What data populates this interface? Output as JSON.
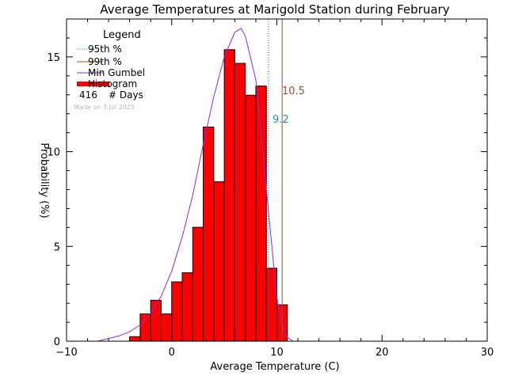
{
  "chart_data": {
    "type": "bar",
    "title": "Average Temperatures at Marigold Station during February",
    "xlabel": "Average Temperature (C)",
    "ylabel": "Probability (%)",
    "xlim": [
      -10,
      30
    ],
    "ylim": [
      0,
      17
    ],
    "xticks": [
      -10,
      0,
      10,
      20,
      30
    ],
    "yticks": [
      0,
      5,
      10,
      15
    ],
    "bin_width": 1,
    "histogram": {
      "bin_left_edges": [
        -4,
        -3,
        -2,
        -1,
        0,
        1,
        2,
        3,
        4,
        5,
        6,
        7,
        8,
        9,
        10
      ],
      "values": [
        0.24,
        1.44,
        2.16,
        1.44,
        3.13,
        3.61,
        6.01,
        11.3,
        8.41,
        15.38,
        14.66,
        12.98,
        13.46,
        3.85,
        1.92
      ],
      "color": "#ff0000"
    },
    "gumbel_curve": {
      "points": [
        [
          -7,
          0.01
        ],
        [
          -5,
          0.28
        ],
        [
          -4,
          0.5
        ],
        [
          -3,
          0.86
        ],
        [
          -2,
          1.45
        ],
        [
          -1,
          2.38
        ],
        [
          0,
          3.7
        ],
        [
          1,
          5.5
        ],
        [
          2,
          7.7
        ],
        [
          3,
          10.4
        ],
        [
          4,
          12.9
        ],
        [
          5,
          15.0
        ],
        [
          6,
          16.3
        ],
        [
          6.6,
          16.5
        ],
        [
          7,
          16.1
        ],
        [
          8,
          13.8
        ],
        [
          9,
          8.0
        ],
        [
          10,
          2.3
        ],
        [
          10.5,
          0.9
        ],
        [
          11,
          0.2
        ],
        [
          11.5,
          0.02
        ]
      ],
      "color": "#8a2be2"
    },
    "p95": {
      "value": 9.2,
      "label": "9.2",
      "color": "#008b8b"
    },
    "p99": {
      "value": 10.5,
      "label": "10.5",
      "color": "#a0522d"
    },
    "legend": {
      "title": "Legend",
      "items": [
        {
          "label": "95th %",
          "style": "dotted",
          "color": "#008b8b"
        },
        {
          "label": "99th %",
          "style": "solid",
          "color": "#a0522d"
        },
        {
          "label": "Min Gumbel",
          "style": "solid",
          "color": "#8a2be2"
        },
        {
          "label": "Histogram",
          "style": "thick",
          "color": "#ff0000"
        }
      ],
      "days_count": "416",
      "days_label": "# Days",
      "made_on": "Made on 3 Jul 2025",
      "placement": "top-left"
    }
  }
}
